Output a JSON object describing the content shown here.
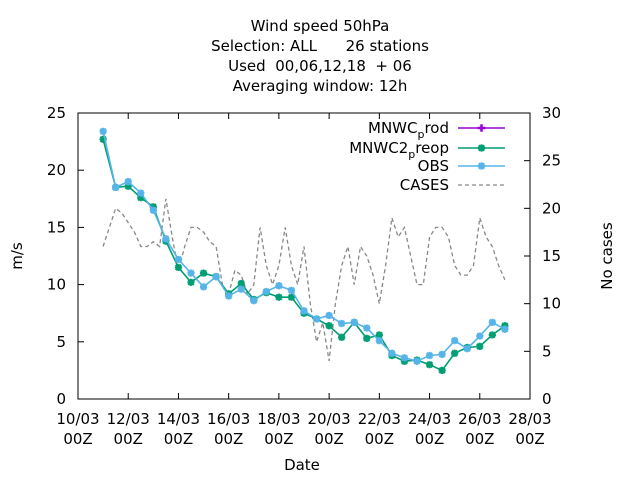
{
  "chart_data": {
    "type": "line",
    "title_lines": [
      "Wind speed 50hPa",
      "Selection: ALL      26 stations",
      "Used  00,06,12,18  + 06",
      "Averaging window: 12h"
    ],
    "xlabel": "Date",
    "ylabel": "m/s",
    "y2label": "No cases",
    "xlim": [
      0,
      18
    ],
    "ylim": [
      0,
      25
    ],
    "y2lim": [
      0,
      30
    ],
    "grid": false,
    "legend_position": "top-right",
    "x_ticks": [
      {
        "x": 0,
        "l1": "10/03",
        "l2": "00Z"
      },
      {
        "x": 2,
        "l1": "12/03",
        "l2": "00Z"
      },
      {
        "x": 4,
        "l1": "14/03",
        "l2": "00Z"
      },
      {
        "x": 6,
        "l1": "16/03",
        "l2": "00Z"
      },
      {
        "x": 8,
        "l1": "18/03",
        "l2": "00Z"
      },
      {
        "x": 10,
        "l1": "20/03",
        "l2": "00Z"
      },
      {
        "x": 12,
        "l1": "22/03",
        "l2": "00Z"
      },
      {
        "x": 14,
        "l1": "24/03",
        "l2": "00Z"
      },
      {
        "x": 16,
        "l1": "26/03",
        "l2": "00Z"
      },
      {
        "x": 18,
        "l1": "28/03",
        "l2": "00Z"
      }
    ],
    "y_ticks": [
      {
        "v": 0,
        "label": "0"
      },
      {
        "v": 5,
        "label": "5"
      },
      {
        "v": 10,
        "label": "10"
      },
      {
        "v": 15,
        "label": "15"
      },
      {
        "v": 20,
        "label": "20"
      },
      {
        "v": 25,
        "label": "25"
      }
    ],
    "y2_ticks": [
      {
        "v": 0,
        "label": "0"
      },
      {
        "v": 5,
        "label": "5"
      },
      {
        "v": 10,
        "label": "10"
      },
      {
        "v": 15,
        "label": "15"
      },
      {
        "v": 20,
        "label": "20"
      },
      {
        "v": 25,
        "label": "25"
      },
      {
        "v": 30,
        "label": "30"
      }
    ],
    "series": [
      {
        "name": "MNWC",
        "sub": "p",
        "name_rest": "rod",
        "color": "#9400d3",
        "marker": "plus",
        "dash": "",
        "axis": "y",
        "x": [],
        "y": []
      },
      {
        "name": "MNWC2",
        "sub": "p",
        "name_rest": "reop",
        "color": "#009e73",
        "marker": "star",
        "dash": "",
        "axis": "y",
        "x": [
          1,
          1.5,
          2,
          2.5,
          3,
          3.5,
          4,
          4.5,
          5,
          5.5,
          6,
          6.5,
          7,
          7.5,
          8,
          8.5,
          9,
          9.5,
          10,
          10.5,
          11,
          11.5,
          12,
          12.5,
          13,
          13.5,
          14,
          14.5,
          15,
          15.5,
          16,
          16.5,
          17
        ],
        "y": [
          22.7,
          18.5,
          18.6,
          17.6,
          16.8,
          13.8,
          11.5,
          10.2,
          11.0,
          10.7,
          9.2,
          10.1,
          8.7,
          9.3,
          8.9,
          8.9,
          7.5,
          7.0,
          6.4,
          5.4,
          6.7,
          5.3,
          5.6,
          3.8,
          3.3,
          3.4,
          3.0,
          2.5,
          4.0,
          4.5,
          4.6,
          5.6,
          6.4
        ]
      },
      {
        "name": "OBS",
        "sub": "",
        "name_rest": "",
        "color": "#56b4e9",
        "marker": "star",
        "dash": "",
        "axis": "y",
        "x": [
          1,
          1.5,
          2,
          2.5,
          3,
          3.5,
          4,
          4.5,
          5,
          5.5,
          6,
          6.5,
          7,
          7.5,
          8,
          8.5,
          9,
          9.5,
          10,
          10.5,
          11,
          11.5,
          12,
          12.5,
          13,
          13.5,
          14,
          14.5,
          15,
          15.5,
          16,
          16.5,
          17
        ],
        "y": [
          23.4,
          18.5,
          19.0,
          18.0,
          16.5,
          14.0,
          12.2,
          11.0,
          9.8,
          10.7,
          9.0,
          9.6,
          8.6,
          9.4,
          9.9,
          9.5,
          7.7,
          7.0,
          7.3,
          6.6,
          6.7,
          6.2,
          5.1,
          4.0,
          3.6,
          3.3,
          3.8,
          3.9,
          5.1,
          4.4,
          5.5,
          6.7,
          6.1
        ]
      },
      {
        "name": "CASES",
        "sub": "",
        "name_rest": "",
        "color": "#888888",
        "marker": "",
        "dash": "4,3",
        "axis": "y2",
        "x": [
          1,
          1.25,
          1.5,
          1.75,
          2,
          2.25,
          2.5,
          2.75,
          3,
          3.25,
          3.5,
          3.75,
          4,
          4.25,
          4.5,
          4.75,
          5,
          5.25,
          5.5,
          5.75,
          6,
          6.25,
          6.5,
          6.75,
          7,
          7.25,
          7.5,
          7.75,
          8,
          8.25,
          8.5,
          8.75,
          9,
          9.25,
          9.5,
          9.75,
          10,
          10.25,
          10.5,
          10.75,
          11,
          11.25,
          11.5,
          11.75,
          12,
          12.25,
          12.5,
          12.75,
          13,
          13.25,
          13.5,
          13.75,
          14,
          14.25,
          14.5,
          14.75,
          15,
          15.25,
          15.5,
          15.75,
          16,
          16.25,
          16.5,
          16.75,
          17
        ],
        "y": [
          16,
          18,
          20,
          19.5,
          18.5,
          17.5,
          16,
          16,
          16.5,
          16,
          21,
          17,
          13.5,
          16,
          18,
          18,
          17.5,
          16.5,
          16,
          12,
          11,
          13.5,
          13,
          11,
          12,
          18,
          14,
          12,
          14,
          18,
          14,
          12,
          16,
          10,
          6,
          8,
          4,
          10,
          14,
          16,
          12,
          16,
          15,
          13,
          10,
          14,
          19,
          17,
          18,
          15,
          12,
          12,
          17,
          18,
          18,
          17,
          14,
          13,
          13,
          14,
          19,
          17,
          16,
          14,
          12.5
        ]
      }
    ]
  }
}
